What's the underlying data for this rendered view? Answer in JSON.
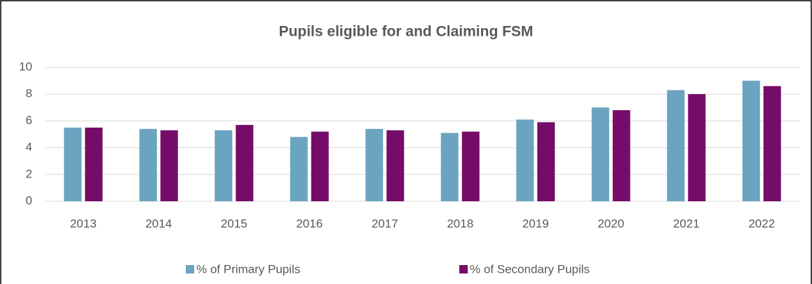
{
  "chart_data": {
    "type": "bar",
    "title": "Pupils eligible for and Claiming FSM",
    "categories": [
      "2013",
      "2014",
      "2015",
      "2016",
      "2017",
      "2018",
      "2019",
      "2020",
      "2021",
      "2022"
    ],
    "series": [
      {
        "name": "% of Primary Pupils",
        "color": "#6ba4c0",
        "values": [
          5.5,
          5.4,
          5.3,
          4.8,
          5.4,
          5.1,
          6.1,
          7.0,
          8.3,
          9.0
        ]
      },
      {
        "name": "% of Secondary Pupils",
        "color": "#750d68",
        "values": [
          5.5,
          5.3,
          5.7,
          5.2,
          5.3,
          5.2,
          5.9,
          6.8,
          8.0,
          8.6
        ]
      }
    ],
    "ylim": [
      0,
      10
    ],
    "yticks": [
      0,
      2,
      4,
      6,
      8,
      10
    ],
    "grid": true,
    "legend": "bottom"
  }
}
